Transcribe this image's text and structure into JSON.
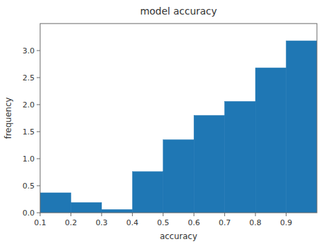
{
  "chart_data": {
    "type": "histogram",
    "title": "model accuracy",
    "xlabel": "accuracy",
    "ylabel": "frequency",
    "color": "#1f77b4",
    "bins": [
      0.1,
      0.2,
      0.3,
      0.4,
      0.5,
      0.6,
      0.7,
      0.8,
      0.9,
      1.0
    ],
    "values": [
      0.37,
      0.19,
      0.06,
      0.76,
      1.35,
      1.8,
      2.06,
      2.68,
      3.18
    ],
    "xlim": [
      0.1,
      1.0
    ],
    "ylim": [
      0,
      3.5
    ],
    "xticks": [
      0.1,
      0.2,
      0.3,
      0.4,
      0.5,
      0.6,
      0.7,
      0.8,
      0.9
    ],
    "yticks": [
      {
        "value": 0.0,
        "label": "0.0"
      },
      0.5,
      {
        "value": 1.0,
        "label": "1.0"
      },
      1.5,
      {
        "value": 2.0,
        "label": "2.0"
      },
      2.5,
      {
        "value": 3.0,
        "label": "3.0"
      }
    ],
    "grid": false
  }
}
